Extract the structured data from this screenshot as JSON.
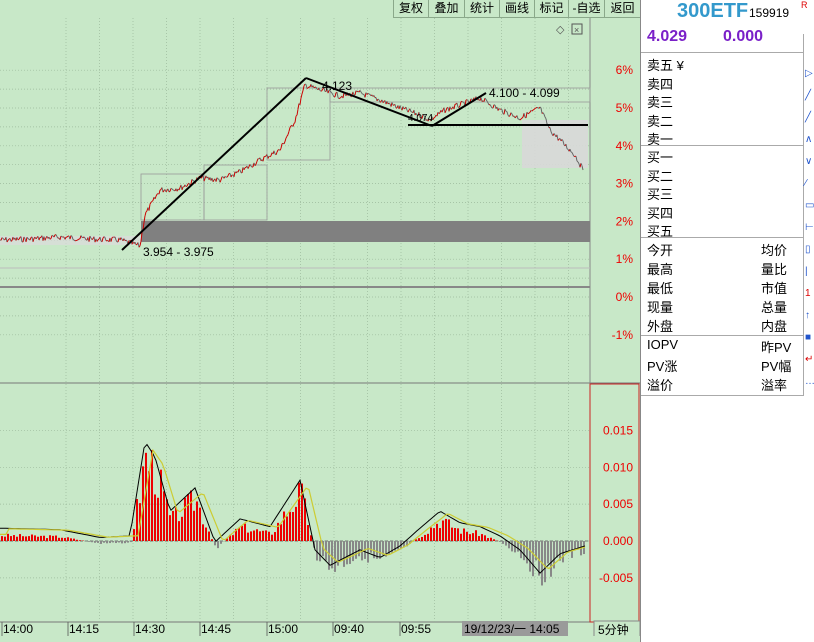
{
  "toolbar": {
    "buttons": [
      "复权",
      "叠加",
      "统计",
      "画线",
      "标记",
      "-自选",
      "返回"
    ]
  },
  "chart": {
    "pct_labels": [
      "6%",
      "5%",
      "4%",
      "3%",
      "2%",
      "1%",
      "0%",
      "-1%"
    ],
    "pct_values": [
      6,
      5,
      4,
      3,
      2,
      1,
      0,
      -1
    ],
    "indicator_labels": [
      "0.015",
      "0.010",
      "0.005",
      "0.000",
      "-0.005"
    ],
    "indicator_values": [
      0.015,
      0.01,
      0.005,
      0.0,
      -0.005
    ],
    "annotations": {
      "low_range": "3.954 - 3.975",
      "peak": "4.123",
      "mid_range": "4.100 - 4.099",
      "trough": "4.074"
    },
    "x_labels": [
      "14:00",
      "14:15",
      "14:30",
      "14:45",
      "15:00",
      "09:40",
      "09:55"
    ],
    "cursor_label": "19/12/23/一 14:05",
    "period_label": "5分钟",
    "colors": {
      "up": "#ee0000",
      "down": "#888888",
      "price_line_up": "#cc0000",
      "price_line_down": "#666666",
      "axis_red": "#ee0000",
      "pct_text": "#ee0000",
      "neg_pct_text": "#ee0000"
    }
  },
  "panel": {
    "code_name": "300ETF",
    "code_num": "159919",
    "r_flag": "R",
    "price": "4.029",
    "change": "0.000",
    "order_book_sell": [
      "卖五 ¥",
      "卖四",
      "卖三",
      "卖二",
      "卖一"
    ],
    "order_book_buy": [
      "买一",
      "买二",
      "买三",
      "买四",
      "买五"
    ],
    "stats_left": [
      "今开",
      "最高",
      "最低",
      "现量",
      "外盘"
    ],
    "stats_right": [
      "均价",
      "量比",
      "市值",
      "总量",
      "内盘"
    ],
    "etf_left": [
      "IOPV",
      "PV涨",
      "溢价"
    ],
    "etf_right": [
      "昨PV",
      "PV幅",
      "溢率"
    ]
  }
}
